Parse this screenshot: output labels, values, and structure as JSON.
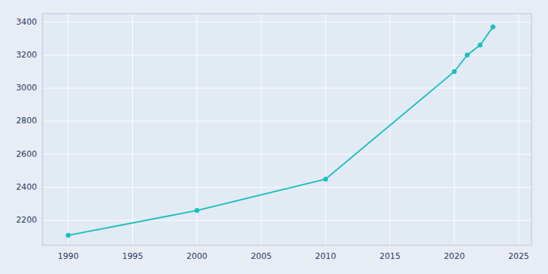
{
  "chart_data": {
    "type": "line",
    "x": [
      1990,
      2000,
      2010,
      2020,
      2021,
      2022,
      2023
    ],
    "values": [
      2110,
      2260,
      2450,
      3100,
      3200,
      3260,
      3370
    ],
    "color": "#1ABFBF",
    "marker": "circle",
    "xlim": [
      1988,
      2026
    ],
    "ylim": [
      2050,
      3450
    ],
    "xticks": [
      1990,
      1995,
      2000,
      2005,
      2010,
      2015,
      2020,
      2025
    ],
    "yticks": [
      2200,
      2400,
      2600,
      2800,
      3000,
      3200,
      3400
    ],
    "grid": true
  }
}
